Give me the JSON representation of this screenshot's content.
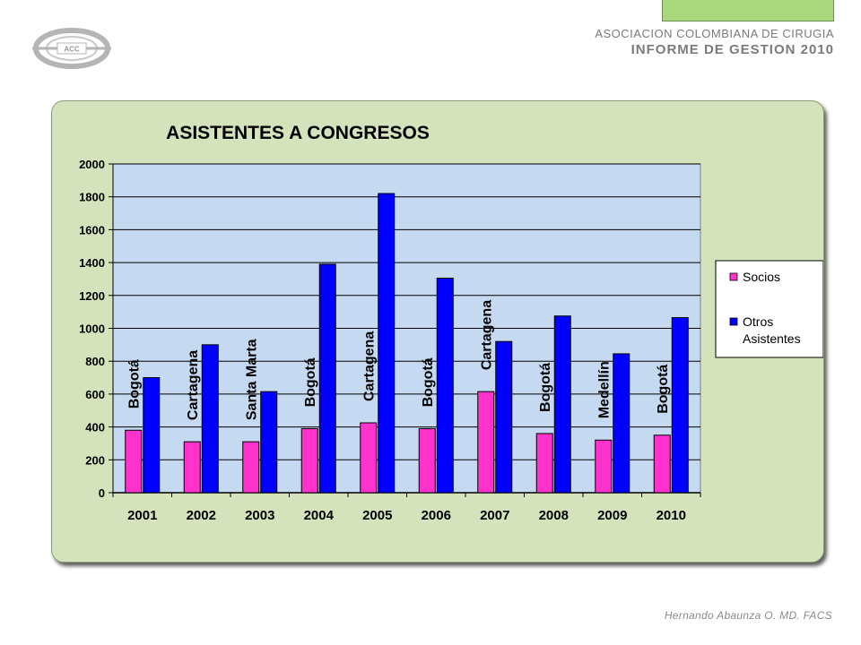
{
  "header": {
    "organization": "ASOCIACION COLOMBIANA DE CIRUGIA",
    "report_title": "INFORME DE GESTION 2010",
    "logo_text": "ACC"
  },
  "footer": {
    "author": "Hernando Abaunza O. MD. FACS"
  },
  "chart_data": {
    "type": "bar",
    "title": "ASISTENTES A CONGRESOS",
    "categories": [
      "2001",
      "2002",
      "2003",
      "2004",
      "2005",
      "2006",
      "2007",
      "2008",
      "2009",
      "2010"
    ],
    "cities": [
      "Bogotá",
      "Cartagena",
      "Santa Marta",
      "Bogotá",
      "Cartagena",
      "Bogotá",
      "Cartagena",
      "Bogotá",
      "Medellín",
      "Bogotá"
    ],
    "series": [
      {
        "name": "Socios",
        "color": "#ff33cc",
        "values": [
          380,
          310,
          310,
          390,
          425,
          390,
          615,
          360,
          320,
          350
        ]
      },
      {
        "name": "Otros Asistentes",
        "color": "#0000ff",
        "values": [
          700,
          900,
          615,
          1390,
          1820,
          1305,
          920,
          1075,
          845,
          1065
        ]
      }
    ],
    "ylim": [
      0,
      2000
    ],
    "yticks": [
      "0",
      "200",
      "400",
      "600",
      "800",
      "1000",
      "1200",
      "1400",
      "1600",
      "1800",
      "2000"
    ],
    "grid": true,
    "legend_position": "right",
    "plot_background": "#c5d9f1"
  }
}
